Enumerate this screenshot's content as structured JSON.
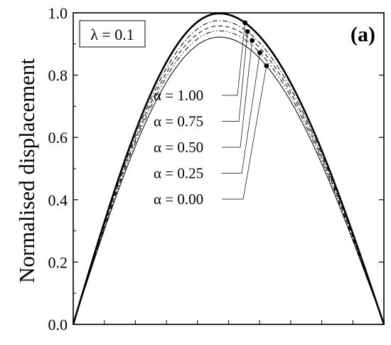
{
  "chart_data": {
    "type": "line",
    "ylabel": "Normalised displacement",
    "panel_label": "(a)",
    "parameter_box": "λ = 0.1",
    "xlim": [
      0,
      1
    ],
    "ylim": [
      0.0,
      1.0
    ],
    "y_ticks": [
      "0.0",
      "0.2",
      "0.4",
      "0.6",
      "0.8",
      "1.0"
    ],
    "x_tick_count": 10,
    "grid": false,
    "legend": "callout labels with leader lines, center",
    "series": [
      {
        "name": "α = 1.00",
        "peak_value": 0.998,
        "peak_x": 0.47,
        "line_style": "solid-thick"
      },
      {
        "name": "α = 0.75",
        "peak_value": 0.975,
        "peak_x": 0.47,
        "line_style": "dash-dot"
      },
      {
        "name": "α = 0.50",
        "peak_value": 0.958,
        "peak_x": 0.47,
        "line_style": "dashed"
      },
      {
        "name": "α = 0.25",
        "peak_value": 0.942,
        "peak_x": 0.47,
        "line_style": "dash-dot-dot"
      },
      {
        "name": "α = 0.00",
        "peak_value": 0.922,
        "peak_x": 0.47,
        "line_style": "solid-thin"
      }
    ]
  }
}
